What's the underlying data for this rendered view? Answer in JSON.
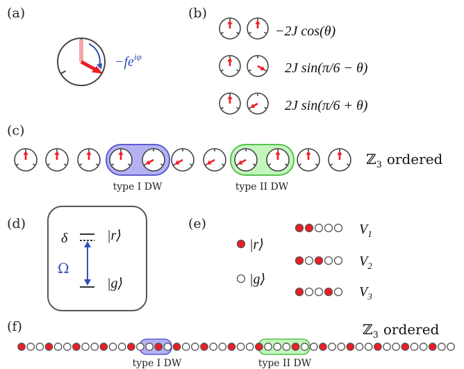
{
  "panels": {
    "a": {
      "label": "(a)",
      "field_expr": "−fe",
      "field_exp": "iφ"
    },
    "b": {
      "label": "(b)",
      "terms": [
        {
          "expr": "−2J cos(θ)"
        },
        {
          "expr": "2J sin(π/6 − θ)"
        },
        {
          "expr": "2J sin(π/6 + θ)"
        }
      ]
    },
    "c": {
      "label": "(c)",
      "ordered_label": "ℤ",
      "ordered_sub": "3",
      "ordered_word": "ordered",
      "dw1_label": "type I DW",
      "dw2_label": "type II DW",
      "clock_states": [
        0,
        0,
        0,
        0,
        1,
        1,
        1,
        1,
        0,
        0,
        0
      ]
    },
    "d": {
      "label": "(d)",
      "delta": "δ",
      "omega": "Ω",
      "ket_r": "|r⟩",
      "ket_g": "|g⟩"
    },
    "e": {
      "label": "(e)",
      "ket_r": "|r⟩",
      "ket_g": "|g⟩",
      "configs": [
        {
          "pattern": [
            1,
            1,
            0,
            0,
            0
          ],
          "name": "V",
          "sub": "1"
        },
        {
          "pattern": [
            1,
            0,
            1,
            0,
            0
          ],
          "name": "V",
          "sub": "2"
        },
        {
          "pattern": [
            1,
            0,
            0,
            1,
            0
          ],
          "name": "V",
          "sub": "3"
        }
      ]
    },
    "f": {
      "label": "(f)",
      "ordered_label": "ℤ",
      "ordered_sub": "3",
      "ordered_word": "ordered",
      "dw1_label": "type I DW",
      "dw2_label": "type II DW",
      "atoms": [
        1,
        0,
        0,
        1,
        0,
        0,
        1,
        0,
        0,
        1,
        0,
        0,
        1,
        0,
        0,
        1,
        0,
        1,
        0,
        0,
        1,
        0,
        0,
        1,
        0,
        0,
        1,
        0,
        0,
        0,
        1,
        0,
        0,
        1,
        0,
        0,
        1,
        0,
        0,
        1,
        0,
        0,
        1,
        0,
        0,
        1,
        0,
        0
      ]
    }
  },
  "colors": {
    "arrow": "#ee1c25",
    "arrow_faded": "#f4a9a8",
    "dial": "#444444",
    "blue": "#2c4fb7",
    "dw1_fill": "#b4b2f2",
    "dw1_stroke": "#5d5bd0",
    "dw2_fill": "#c4f5bd",
    "dw2_stroke": "#55c24a"
  }
}
